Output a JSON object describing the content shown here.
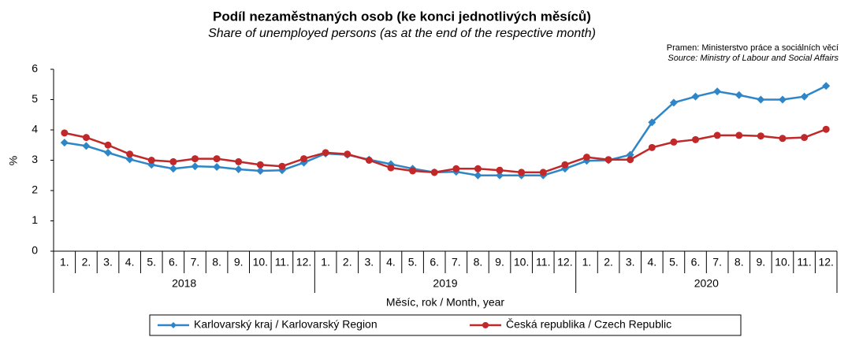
{
  "chart_data": {
    "type": "line",
    "title": "Podíl nezaměstnaných osob (ke konci jednotlivých měsíců)",
    "subtitle": "Share of unemployed persons (as at the end of the respective month)",
    "source_cz": "Pramen: Ministerstvo práce a sociálních věcí",
    "source_en": "Source: Ministry of Labour and Social Affairs",
    "y_label": "%",
    "x_label": "Měsíc, rok / Month, year",
    "categories": [
      "1.",
      "2.",
      "3.",
      "4.",
      "5.",
      "6.",
      "7.",
      "8.",
      "9.",
      "10.",
      "11.",
      "12.",
      "1.",
      "2.",
      "3.",
      "4.",
      "5.",
      "6.",
      "7.",
      "8.",
      "9.",
      "10.",
      "11.",
      "12.",
      "1.",
      "2.",
      "3.",
      "4.",
      "5.",
      "6.",
      "7.",
      "8.",
      "9.",
      "10.",
      "11.",
      "12."
    ],
    "years": [
      "2018",
      "2019",
      "2020"
    ],
    "ylim": [
      0,
      6
    ],
    "yticks": [
      0,
      1,
      2,
      3,
      4,
      5,
      6
    ],
    "grid": false,
    "legend": "bottom",
    "series": [
      {
        "name": "Karlovarský kraj / Karlovarský Region",
        "color": "#2e86c8",
        "marker": "diamond",
        "values": [
          3.58,
          3.47,
          3.25,
          3.03,
          2.85,
          2.72,
          2.8,
          2.78,
          2.7,
          2.65,
          2.67,
          2.92,
          3.22,
          3.18,
          3.02,
          2.87,
          2.72,
          2.6,
          2.62,
          2.5,
          2.5,
          2.5,
          2.5,
          2.72,
          2.98,
          3.0,
          3.18,
          4.25,
          4.9,
          5.1,
          5.27,
          5.15,
          5.0,
          5.0,
          5.1,
          5.45
        ]
      },
      {
        "name": "Česká republika / Czech Republic",
        "color": "#c0282a",
        "marker": "circle",
        "values": [
          3.9,
          3.75,
          3.5,
          3.2,
          3.0,
          2.95,
          3.05,
          3.05,
          2.95,
          2.85,
          2.8,
          3.05,
          3.25,
          3.2,
          3.0,
          2.75,
          2.65,
          2.6,
          2.72,
          2.72,
          2.67,
          2.6,
          2.6,
          2.85,
          3.1,
          3.02,
          3.02,
          3.42,
          3.6,
          3.68,
          3.82,
          3.82,
          3.8,
          3.72,
          3.75,
          4.02
        ]
      }
    ]
  }
}
